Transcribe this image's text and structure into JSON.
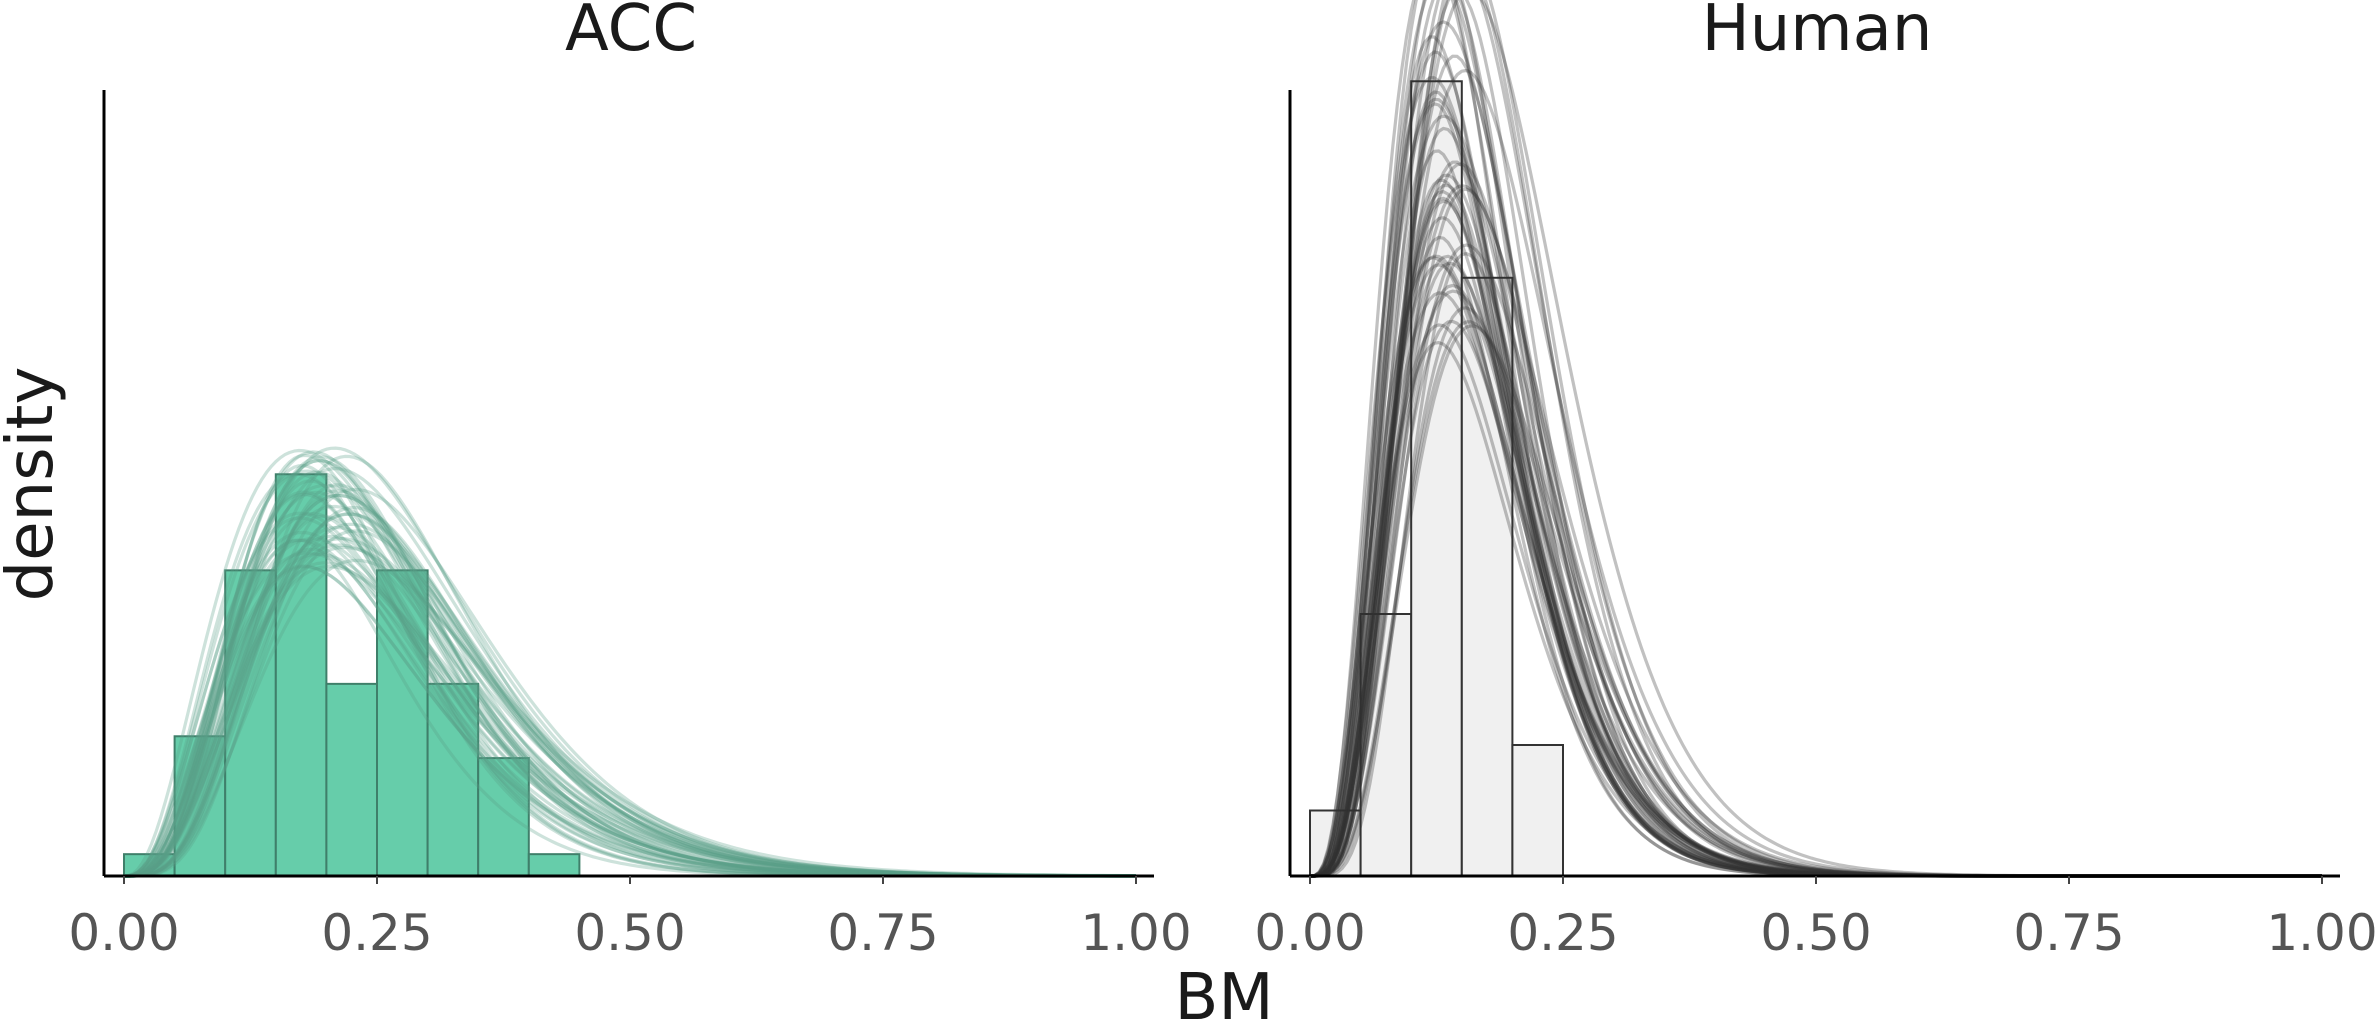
{
  "figure": {
    "xlabel": "BM",
    "ylabel": "density"
  },
  "chart_data": [
    {
      "type": "histogram",
      "title": "ACC",
      "xlabel": "BM",
      "ylabel": "density",
      "xlim": [
        0,
        1
      ],
      "ylim": [
        0,
        9
      ],
      "xticks": [
        "0.00",
        "0.25",
        "0.50",
        "0.75",
        "1.00"
      ],
      "yticks": [],
      "bin_edges": [
        0.0,
        0.05,
        0.1,
        0.15,
        0.2,
        0.25,
        0.3,
        0.35,
        0.4,
        0.45
      ],
      "bin_density": [
        0.25,
        1.6,
        3.5,
        4.6,
        2.2,
        3.5,
        2.2,
        1.35,
        0.25
      ],
      "bar_color": "#66cdaa",
      "bar_edge_color": "#3f7f6a",
      "overlay": {
        "kind": "posterior predictive densities",
        "color": "#5a9e88",
        "num_curves": 50,
        "peak_x_range": [
          0.17,
          0.23
        ],
        "peak_density_range": [
          3.5,
          4.9
        ],
        "spread_range": [
          0.09,
          0.15
        ]
      }
    },
    {
      "type": "histogram",
      "title": "Human",
      "xlabel": "BM",
      "ylabel": "density",
      "xlim": [
        0,
        1
      ],
      "ylim": [
        0,
        9
      ],
      "xticks": [
        "0.00",
        "0.25",
        "0.50",
        "0.75",
        "1.00"
      ],
      "yticks": [],
      "bin_edges": [
        0.0,
        0.05,
        0.1,
        0.15,
        0.2,
        0.25
      ],
      "bin_density": [
        0.75,
        3.0,
        9.1,
        6.85,
        1.5
      ],
      "bar_color": "#f0f0f0",
      "bar_edge_color": "#333333",
      "overlay": {
        "kind": "posterior predictive densities",
        "color": "#333333",
        "num_curves": 50,
        "peak_x_range": [
          0.12,
          0.16
        ],
        "peak_density_range": [
          6.0,
          10.6
        ],
        "spread_range": [
          0.06,
          0.09
        ]
      }
    }
  ]
}
